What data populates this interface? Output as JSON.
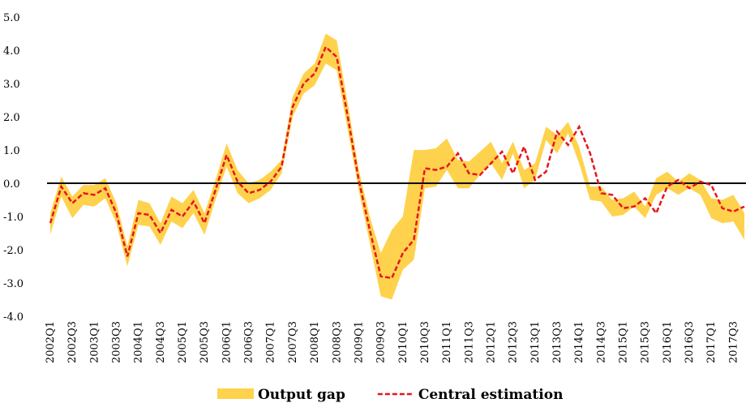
{
  "chart_data": {
    "type": "band-line",
    "categories": [
      "2002Q1",
      null,
      "2002Q3",
      null,
      "2003Q1",
      null,
      "2003Q3",
      null,
      "2004Q1",
      null,
      "2004Q3",
      null,
      "2005Q1",
      null,
      "2005Q3",
      null,
      "2006Q1",
      null,
      "2006Q3",
      null,
      "2007Q1",
      null,
      "2007Q3",
      null,
      "2008Q1",
      null,
      "2008Q3",
      null,
      "2009Q1",
      null,
      "2009Q3",
      null,
      "2010Q1",
      null,
      "2010Q3",
      null,
      "2011Q1",
      null,
      "2011Q3",
      null,
      "2012Q1",
      null,
      "2012Q3",
      null,
      "2013Q1",
      null,
      "2013Q3",
      null,
      "2014Q1",
      null,
      "2014Q3",
      null,
      "2015Q1",
      null,
      "2015Q3",
      null,
      "2016Q1",
      null,
      "2016Q3",
      null,
      "2017Q1",
      null,
      "2017Q3",
      null
    ],
    "series": [
      {
        "name": "Output gap",
        "color": "#ffd24d",
        "upper": [
          -0.9,
          0.2,
          -0.4,
          -0.05,
          -0.05,
          0.15,
          -0.6,
          -1.9,
          -0.5,
          -0.6,
          -1.2,
          -0.4,
          -0.6,
          -0.2,
          -0.9,
          0.1,
          1.2,
          0.4,
          0.0,
          0.1,
          0.35,
          0.7,
          2.6,
          3.3,
          3.6,
          4.5,
          4.3,
          2.4,
          0.4,
          -1.0,
          -2.1,
          -1.4,
          -1.0,
          1.0,
          1.0,
          1.05,
          1.35,
          0.7,
          0.65,
          0.95,
          1.25,
          0.6,
          1.25,
          0.4,
          0.6,
          1.7,
          1.45,
          1.85,
          1.1,
          -0.1,
          -0.1,
          -0.5,
          -0.45,
          -0.25,
          -0.7,
          0.15,
          0.35,
          0.05,
          0.3,
          0.1,
          -0.45,
          -0.5,
          -0.35,
          -0.9
        ],
        "lower": [
          -1.55,
          -0.4,
          -1.05,
          -0.65,
          -0.7,
          -0.45,
          -1.2,
          -2.5,
          -1.25,
          -1.3,
          -1.85,
          -1.15,
          -1.35,
          -0.9,
          -1.55,
          -0.5,
          0.5,
          -0.3,
          -0.6,
          -0.45,
          -0.2,
          0.3,
          2.0,
          2.7,
          2.95,
          3.6,
          3.4,
          1.6,
          -0.2,
          -1.8,
          -3.4,
          -3.5,
          -2.6,
          -2.3,
          -0.15,
          -0.1,
          0.4,
          -0.15,
          -0.15,
          0.25,
          0.6,
          0.1,
          0.9,
          -0.15,
          0.1,
          1.3,
          0.9,
          1.5,
          0.6,
          -0.5,
          -0.55,
          -1.0,
          -0.95,
          -0.7,
          -1.05,
          -0.35,
          -0.15,
          -0.35,
          -0.15,
          -0.35,
          -1.05,
          -1.2,
          -1.15,
          -1.7
        ]
      },
      {
        "name": "Central estimation",
        "color": "#e8141c",
        "values": [
          -1.2,
          -0.1,
          -0.6,
          -0.3,
          -0.35,
          -0.15,
          -0.9,
          -2.2,
          -0.9,
          -0.95,
          -1.5,
          -0.8,
          -1.0,
          -0.55,
          -1.2,
          -0.2,
          0.85,
          0.05,
          -0.3,
          -0.2,
          0.05,
          0.5,
          2.3,
          3.0,
          3.3,
          4.1,
          3.8,
          2.0,
          0.1,
          -1.4,
          -2.8,
          -2.85,
          -2.1,
          -1.7,
          0.45,
          0.4,
          0.5,
          0.9,
          0.3,
          0.25,
          0.6,
          0.95,
          0.3,
          1.1,
          0.1,
          0.35,
          1.55,
          1.15,
          1.7,
          0.9,
          -0.3,
          -0.35,
          -0.75,
          -0.7,
          -0.45,
          -0.9,
          -0.1,
          0.1,
          -0.15,
          0.05,
          -0.05,
          -0.75,
          -0.85,
          -0.7
        ]
      }
    ],
    "ylim": [
      -4,
      5
    ],
    "yticks": [
      {
        "value": -4,
        "label": "-4.0"
      },
      {
        "value": -3,
        "label": "-3.0"
      },
      {
        "value": -2,
        "label": "-2.0"
      },
      {
        "value": -1,
        "label": "-1.0"
      },
      {
        "value": 0,
        "label": "0.0"
      },
      {
        "value": 1,
        "label": "1.0"
      },
      {
        "value": 2,
        "label": "2.0"
      },
      {
        "value": 3,
        "label": "3.0"
      },
      {
        "value": 4,
        "label": "4.0"
      },
      {
        "value": 5,
        "label": "5.0"
      }
    ],
    "grid": false,
    "legend": "bottom"
  }
}
